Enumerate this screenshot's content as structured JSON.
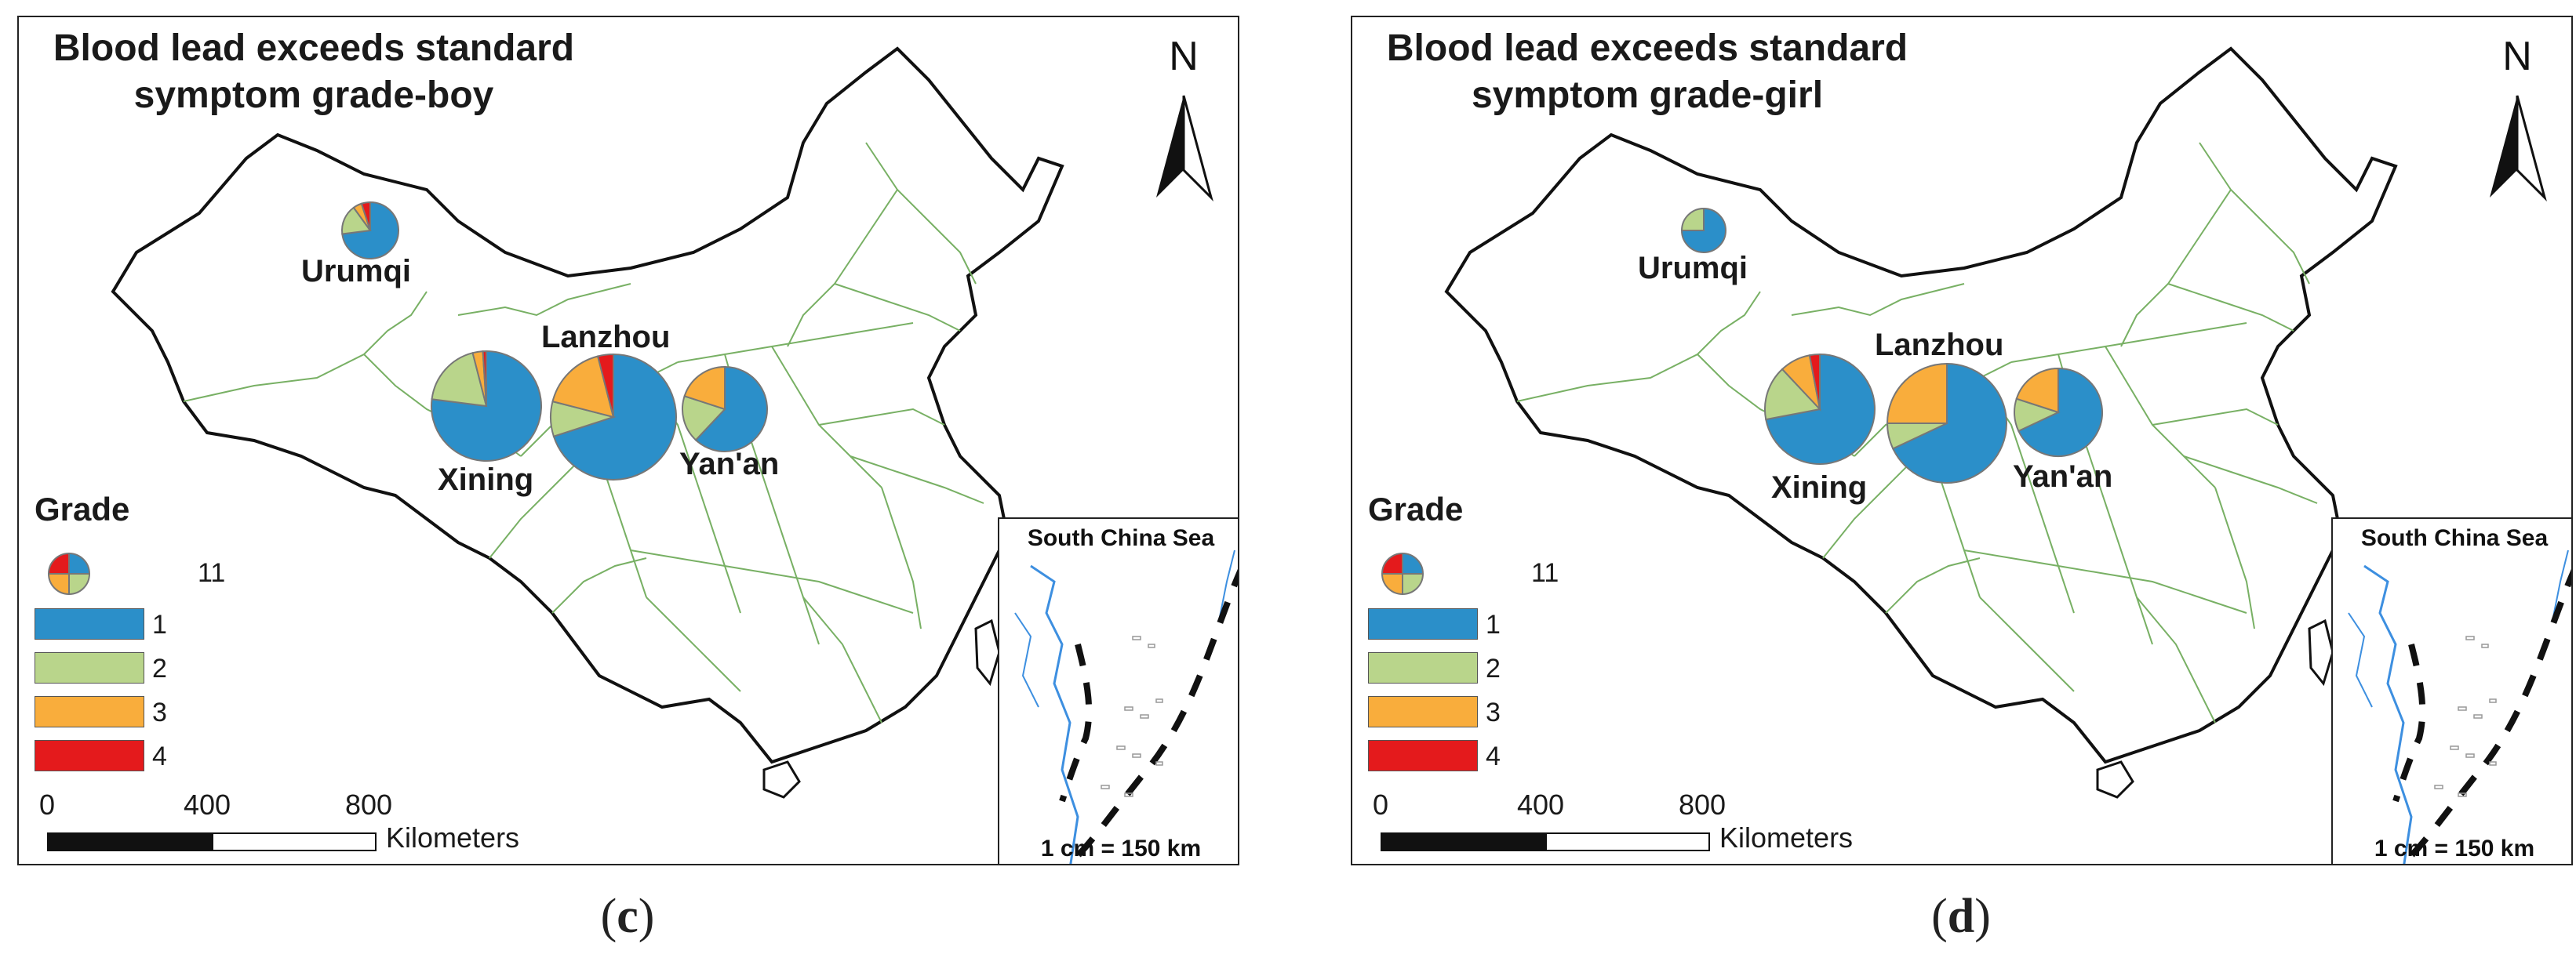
{
  "colors": {
    "grade_1": "#2b8fc9",
    "grade_2": "#b9d58b",
    "grade_3": "#f9ad3c",
    "grade_4": "#e41a1c",
    "province_border": "#78b064",
    "country_border": "#111111",
    "water": "#3d8fe0"
  },
  "legend": {
    "title": "Grade",
    "sample_count": "11",
    "grades": [
      {
        "label": "1",
        "color": "#2b8fc9"
      },
      {
        "label": "2",
        "color": "#b9d58b"
      },
      {
        "label": "3",
        "color": "#f9ad3c"
      },
      {
        "label": "4",
        "color": "#e41a1c"
      }
    ]
  },
  "scalebar": {
    "ticks": [
      "0",
      "400",
      "800"
    ],
    "unit": "Kilometers"
  },
  "north_arrow": {
    "label": "N",
    "icon": "north-arrow-icon"
  },
  "inset": {
    "title": "South China Sea",
    "scale_text": "1 cm = 150 km"
  },
  "panels": [
    {
      "id": "c",
      "title_line1": "Blood lead exceeds standard",
      "title_line2": "symptom grade-boy",
      "caption": "c",
      "cities": [
        {
          "name": "Urumqi",
          "grades": [
            0.73,
            0.17,
            0.05,
            0.05
          ]
        },
        {
          "name": "Xining",
          "grades": [
            0.77,
            0.19,
            0.03,
            0.01
          ]
        },
        {
          "name": "Lanzhou",
          "grades": [
            0.7,
            0.09,
            0.17,
            0.04
          ]
        },
        {
          "name": "Yan'an",
          "grades": [
            0.62,
            0.18,
            0.2,
            0.0
          ]
        }
      ]
    },
    {
      "id": "d",
      "title_line1": "Blood lead exceeds standard",
      "title_line2": "symptom grade-girl",
      "caption": "d",
      "cities": [
        {
          "name": "Urumqi",
          "grades": [
            0.75,
            0.25,
            0.0,
            0.0
          ]
        },
        {
          "name": "Xining",
          "grades": [
            0.72,
            0.16,
            0.09,
            0.03
          ]
        },
        {
          "name": "Lanzhou",
          "grades": [
            0.68,
            0.07,
            0.25,
            0.0
          ]
        },
        {
          "name": "Yan'an",
          "grades": [
            0.68,
            0.12,
            0.2,
            0.0
          ]
        }
      ]
    }
  ]
}
